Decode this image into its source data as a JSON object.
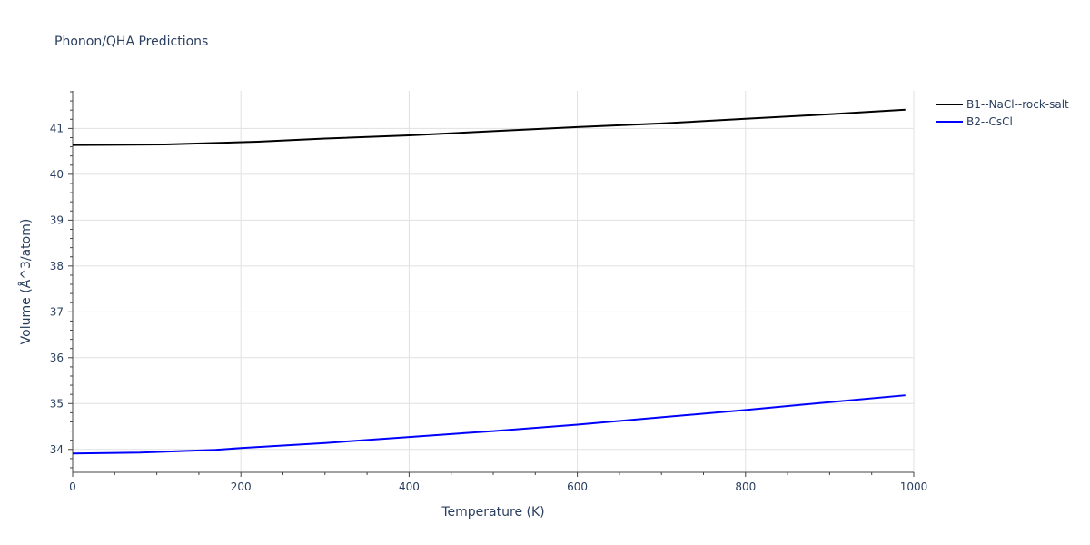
{
  "chart_data": {
    "type": "line",
    "title": "Phonon/QHA Predictions",
    "xlabel": "Temperature (K)",
    "ylabel": "Volume (Å^3/atom)",
    "xlim": [
      0,
      1000
    ],
    "ylim": [
      33.5,
      41.82
    ],
    "xticks": [
      0,
      200,
      400,
      600,
      800,
      1000
    ],
    "yticks": [
      34,
      35,
      36,
      37,
      38,
      39,
      40,
      41
    ],
    "grid": true,
    "legend_position": "top-right",
    "series": [
      {
        "name": "B1--NaCl--rock-salt",
        "color": "#000000",
        "x": [
          0,
          110,
          220,
          300,
          400,
          500,
          600,
          700,
          800,
          900,
          990
        ],
        "y": [
          40.64,
          40.65,
          40.71,
          40.78,
          40.85,
          40.94,
          41.03,
          41.11,
          41.21,
          41.31,
          41.41
        ]
      },
      {
        "name": "B2--CsCl",
        "color": "#0000ff",
        "x": [
          0,
          80,
          170,
          200,
          300,
          400,
          500,
          600,
          700,
          800,
          900,
          990
        ],
        "y": [
          33.91,
          33.93,
          33.99,
          34.03,
          34.14,
          34.27,
          34.4,
          34.54,
          34.7,
          34.86,
          35.03,
          35.18
        ]
      }
    ]
  }
}
